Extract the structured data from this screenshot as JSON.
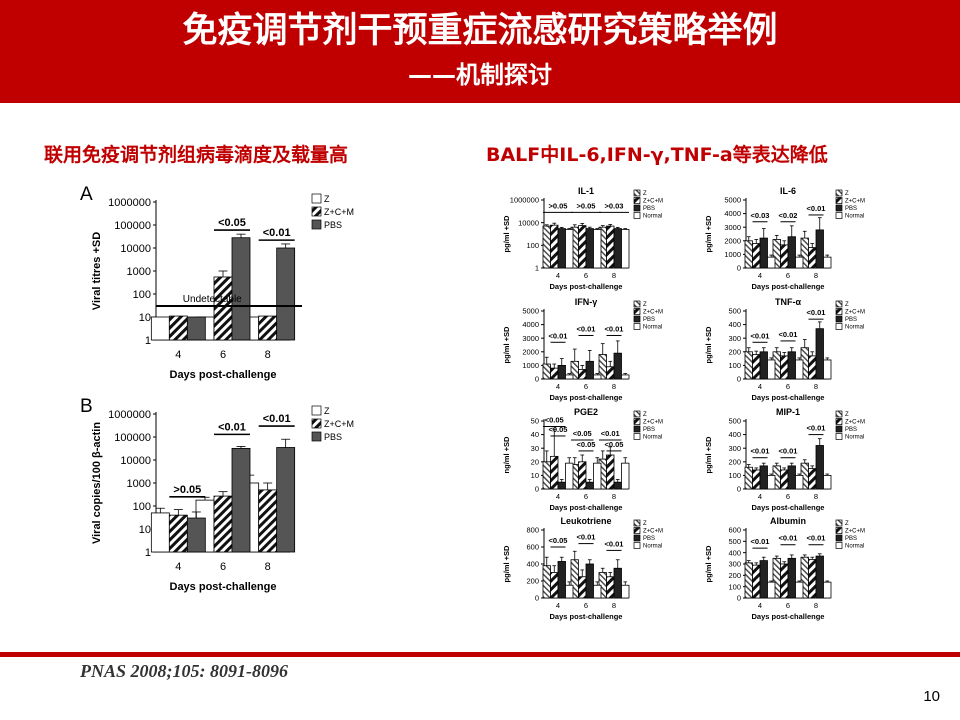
{
  "slide": {
    "title": "免疫调节剂干预重症流感研究策略举例",
    "subtitle": "——机制探讨",
    "left_heading": "联用免疫调节剂组病毒滴度及载量高",
    "right_heading": "BALF中IL-6,IFN-γ,TNF-a等表达降低",
    "citation": "PNAS 2008;105: 8091-8096",
    "page_number": "10"
  },
  "colors": {
    "header": "#c00000",
    "accent_text": "#c00000",
    "dark_bar": "#555555",
    "black_bar": "#222222"
  },
  "chart_data": [
    {
      "id": "A",
      "type": "bar",
      "panel_label": "A",
      "categories": [
        "4",
        "6",
        "8"
      ],
      "xlabel": "Days post-challenge",
      "ylabel": "Viral titres +SD",
      "yscale": "log",
      "ylim": [
        1,
        1000000
      ],
      "ticks": [
        "1",
        "10",
        "100",
        "1000",
        "10000",
        "100000",
        "1000000"
      ],
      "series": [
        {
          "name": "Z",
          "pattern": "white",
          "values": [
            10,
            10,
            10
          ]
        },
        {
          "name": "Z+C+M",
          "pattern": "stripe",
          "values": [
            11,
            550,
            11
          ]
        },
        {
          "name": "PBS",
          "pattern": "gray",
          "values": [
            10,
            28000,
            10000
          ]
        }
      ],
      "errors": [
        [
          0,
          0,
          0
        ],
        [
          0,
          450,
          0
        ],
        [
          0,
          12000,
          5000
        ]
      ],
      "reference_line": {
        "value": 30,
        "label": "Undetectable"
      },
      "annotations": [
        {
          "label": "<0.05",
          "cat": 1,
          "from": 1,
          "to": 2,
          "value": 60000
        },
        {
          "label": "<0.01",
          "cat": 2,
          "from": 1,
          "to": 2,
          "value": 22000
        }
      ]
    },
    {
      "id": "B",
      "type": "bar",
      "panel_label": "B",
      "categories": [
        "4",
        "6",
        "8"
      ],
      "xlabel": "Days post-challenge",
      "ylabel": "Viral copies/100 β-actin",
      "yscale": "log",
      "ylim": [
        1,
        1000000
      ],
      "ticks": [
        "1",
        "10",
        "100",
        "1000",
        "10000",
        "100000",
        "1000000"
      ],
      "series": [
        {
          "name": "Z",
          "pattern": "white",
          "values": [
            50,
            180,
            1000
          ]
        },
        {
          "name": "Z+C+M",
          "pattern": "stripe",
          "values": [
            40,
            270,
            500
          ]
        },
        {
          "name": "PBS",
          "pattern": "gray",
          "values": [
            30,
            32000,
            35000
          ]
        }
      ],
      "errors": [
        [
          30,
          60,
          1200
        ],
        [
          30,
          150,
          500
        ],
        [
          25,
          7000,
          45000
        ]
      ],
      "annotations": [
        {
          "label": ">0.05",
          "cat": 0,
          "from": 1,
          "to": 2,
          "value": 250
        },
        {
          "label": "<0.01",
          "cat": 1,
          "from": 1,
          "to": 2,
          "value": 130000
        },
        {
          "label": "<0.01",
          "cat": 2,
          "from": 1,
          "to": 2,
          "value": 300000
        }
      ]
    },
    {
      "id": "IL-1",
      "type": "bar",
      "title": "IL-1",
      "categories": [
        "4",
        "6",
        "8"
      ],
      "xlabel": "Days post-challenge",
      "ylabel": "pg/ml +SD",
      "yscale": "log",
      "ylim": [
        1,
        1000000
      ],
      "ticks": [
        "1",
        "100",
        "10000",
        "1000000"
      ],
      "series": [
        {
          "name": "Z",
          "pattern": "stripe2",
          "values": [
            5000,
            4000,
            4000
          ]
        },
        {
          "name": "Z+C+M",
          "pattern": "stripe",
          "values": [
            6000,
            5500,
            5000
          ]
        },
        {
          "name": "PBS",
          "pattern": "black",
          "values": [
            3000,
            3000,
            3000
          ]
        },
        {
          "name": "Normal",
          "pattern": "white",
          "values": [
            2500,
            2500,
            2500
          ]
        }
      ],
      "errors": [
        [
          1500,
          2500,
          1500
        ],
        [
          3000,
          3000,
          2000
        ],
        [
          800,
          1000,
          800
        ],
        [
          500,
          500,
          500
        ]
      ],
      "annotations": [
        {
          "label": ">0.05",
          "cat": 0,
          "from": 0,
          "to": 3,
          "value": 80000
        },
        {
          "label": ">0.05",
          "cat": 1,
          "from": 0,
          "to": 3,
          "value": 80000
        },
        {
          "label": ">0.03",
          "cat": 2,
          "from": 0,
          "to": 3,
          "value": 80000
        }
      ]
    },
    {
      "id": "IL-6",
      "type": "bar",
      "title": "IL-6",
      "categories": [
        "4",
        "6",
        "8"
      ],
      "xlabel": "Days post-challenge",
      "ylabel": "pg/ml +SD",
      "yscale": "linear",
      "ylim": [
        0,
        5000
      ],
      "ticks": [
        "0",
        "1000",
        "2000",
        "3000",
        "4000",
        "5000"
      ],
      "series": [
        {
          "name": "Z",
          "pattern": "stripe2",
          "values": [
            2000,
            2100,
            2200
          ]
        },
        {
          "name": "Z+C+M",
          "pattern": "stripe",
          "values": [
            1800,
            1700,
            1500
          ]
        },
        {
          "name": "PBS",
          "pattern": "black",
          "values": [
            2200,
            2300,
            2800
          ]
        },
        {
          "name": "Normal",
          "pattern": "white",
          "values": [
            800,
            800,
            800
          ]
        }
      ],
      "errors": [
        [
          300,
          300,
          500
        ],
        [
          300,
          300,
          300
        ],
        [
          700,
          800,
          900
        ],
        [
          150,
          150,
          150
        ]
      ],
      "annotations": [
        {
          "label": "<0.03",
          "cat": 0,
          "from": 1,
          "to": 2,
          "value": 3400
        },
        {
          "label": "<0.02",
          "cat": 1,
          "from": 1,
          "to": 2,
          "value": 3400
        },
        {
          "label": "<0.01",
          "cat": 2,
          "from": 1,
          "to": 2,
          "value": 3900
        }
      ]
    },
    {
      "id": "IFN",
      "type": "bar",
      "title": "IFN-γ",
      "categories": [
        "4",
        "6",
        "8"
      ],
      "xlabel": "Days post-challenge",
      "ylabel": "pg/ml +SD",
      "yscale": "linear",
      "ylim": [
        0,
        5000
      ],
      "ticks": [
        "0",
        "1000",
        "2000",
        "3000",
        "4000",
        "5000"
      ],
      "series": [
        {
          "name": "Z",
          "pattern": "stripe2",
          "values": [
            1100,
            1300,
            1800
          ]
        },
        {
          "name": "Z+C+M",
          "pattern": "stripe",
          "values": [
            800,
            700,
            900
          ]
        },
        {
          "name": "PBS",
          "pattern": "black",
          "values": [
            1000,
            1300,
            1900
          ]
        },
        {
          "name": "Normal",
          "pattern": "white",
          "values": [
            300,
            300,
            300
          ]
        }
      ],
      "errors": [
        [
          500,
          900,
          800
        ],
        [
          300,
          300,
          400
        ],
        [
          500,
          800,
          900
        ],
        [
          100,
          100,
          100
        ]
      ],
      "annotations": [
        {
          "label": "<0.01",
          "cat": 0,
          "from": 1,
          "to": 2,
          "value": 2700
        },
        {
          "label": "<0.01",
          "cat": 1,
          "from": 1,
          "to": 2,
          "value": 3200
        },
        {
          "label": "<0.01",
          "cat": 2,
          "from": 1,
          "to": 2,
          "value": 3200
        }
      ]
    },
    {
      "id": "TNF",
      "type": "bar",
      "title": "TNF-α",
      "categories": [
        "4",
        "6",
        "8"
      ],
      "xlabel": "Days post-challenge",
      "ylabel": "pg/ml +SD",
      "yscale": "linear",
      "ylim": [
        0,
        500
      ],
      "ticks": [
        "0",
        "100",
        "200",
        "300",
        "400",
        "500"
      ],
      "series": [
        {
          "name": "Z",
          "pattern": "stripe2",
          "values": [
            200,
            200,
            230
          ]
        },
        {
          "name": "Z+C+M",
          "pattern": "stripe",
          "values": [
            180,
            170,
            170
          ]
        },
        {
          "name": "PBS",
          "pattern": "black",
          "values": [
            200,
            200,
            370
          ]
        },
        {
          "name": "Normal",
          "pattern": "white",
          "values": [
            140,
            140,
            140
          ]
        }
      ],
      "errors": [
        [
          30,
          30,
          60
        ],
        [
          25,
          25,
          30
        ],
        [
          30,
          30,
          50
        ],
        [
          15,
          15,
          15
        ]
      ],
      "annotations": [
        {
          "label": "<0.01",
          "cat": 0,
          "from": 1,
          "to": 2,
          "value": 270
        },
        {
          "label": "<0.01",
          "cat": 1,
          "from": 1,
          "to": 2,
          "value": 280
        },
        {
          "label": "<0.01",
          "cat": 2,
          "from": 1,
          "to": 2,
          "value": 440
        }
      ]
    },
    {
      "id": "PGE2",
      "type": "bar",
      "title": "PGE2",
      "categories": [
        "4",
        "6",
        "8"
      ],
      "xlabel": "Days post-challenge",
      "ylabel": "ng/ml +SD",
      "yscale": "linear",
      "ylim": [
        0,
        50
      ],
      "ticks": [
        "0",
        "10",
        "20",
        "30",
        "40",
        "50"
      ],
      "series": [
        {
          "name": "Z",
          "pattern": "stripe2",
          "values": [
            20,
            18,
            22
          ]
        },
        {
          "name": "Z+C+M",
          "pattern": "stripe",
          "values": [
            24,
            20,
            25
          ]
        },
        {
          "name": "PBS",
          "pattern": "black",
          "values": [
            5,
            5,
            5
          ]
        },
        {
          "name": "Normal",
          "pattern": "white",
          "values": [
            19,
            19,
            19
          ]
        }
      ],
      "errors": [
        [
          8,
          5,
          6
        ],
        [
          20,
          5,
          6
        ],
        [
          2,
          2,
          2
        ],
        [
          4,
          4,
          4
        ]
      ],
      "annotations": [
        {
          "label": "<0.05",
          "cat": 0,
          "from": 0,
          "to": 2,
          "value": 46
        },
        {
          "label": "<0.05",
          "cat": 0,
          "from": 1,
          "to": 2,
          "value": 39
        },
        {
          "label": "<0.05",
          "cat": 1,
          "from": 0,
          "to": 2,
          "value": 36
        },
        {
          "label": "<0.05",
          "cat": 1,
          "from": 1,
          "to": 2,
          "value": 28
        },
        {
          "label": "<0.01",
          "cat": 2,
          "from": 0,
          "to": 2,
          "value": 36
        },
        {
          "label": "<0.05",
          "cat": 2,
          "from": 1,
          "to": 2,
          "value": 28
        }
      ]
    },
    {
      "id": "MIP-1",
      "type": "bar",
      "title": "MIP-1",
      "categories": [
        "4",
        "6",
        "8"
      ],
      "xlabel": "Days post-challenge",
      "ylabel": "pg/ml +SD",
      "yscale": "linear",
      "ylim": [
        0,
        500
      ],
      "ticks": [
        "0",
        "100",
        "200",
        "300",
        "400",
        "500"
      ],
      "series": [
        {
          "name": "Z",
          "pattern": "stripe2",
          "values": [
            160,
            170,
            190
          ]
        },
        {
          "name": "Z+C+M",
          "pattern": "stripe",
          "values": [
            140,
            140,
            150
          ]
        },
        {
          "name": "PBS",
          "pattern": "black",
          "values": [
            170,
            170,
            320
          ]
        },
        {
          "name": "Normal",
          "pattern": "white",
          "values": [
            100,
            100,
            100
          ]
        }
      ],
      "errors": [
        [
          20,
          20,
          25
        ],
        [
          15,
          15,
          20
        ],
        [
          20,
          20,
          50
        ],
        [
          10,
          10,
          10
        ]
      ],
      "annotations": [
        {
          "label": "<0.01",
          "cat": 0,
          "from": 1,
          "to": 2,
          "value": 230
        },
        {
          "label": "<0.01",
          "cat": 1,
          "from": 1,
          "to": 2,
          "value": 230
        },
        {
          "label": "<0.01",
          "cat": 2,
          "from": 1,
          "to": 2,
          "value": 400
        }
      ]
    },
    {
      "id": "Leukotriene",
      "type": "bar",
      "title": "Leukotriene",
      "categories": [
        "4",
        "6",
        "8"
      ],
      "xlabel": "Days post-challenge",
      "ylabel": "pg/ml +SD",
      "yscale": "linear",
      "ylim": [
        0,
        800
      ],
      "ticks": [
        "0",
        "200",
        "400",
        "600",
        "800"
      ],
      "series": [
        {
          "name": "Z",
          "pattern": "stripe2",
          "values": [
            380,
            450,
            300
          ]
        },
        {
          "name": "Z+C+M",
          "pattern": "stripe",
          "values": [
            300,
            250,
            250
          ]
        },
        {
          "name": "PBS",
          "pattern": "black",
          "values": [
            430,
            400,
            350
          ]
        },
        {
          "name": "Normal",
          "pattern": "white",
          "values": [
            150,
            150,
            150
          ]
        }
      ],
      "errors": [
        [
          100,
          100,
          50
        ],
        [
          80,
          80,
          50
        ],
        [
          50,
          50,
          100
        ],
        [
          40,
          40,
          40
        ]
      ],
      "annotations": [
        {
          "label": "<0.05",
          "cat": 0,
          "from": 1,
          "to": 2,
          "value": 600
        },
        {
          "label": "<0.01",
          "cat": 1,
          "from": 1,
          "to": 2,
          "value": 640
        },
        {
          "label": "<0.01",
          "cat": 2,
          "from": 1,
          "to": 2,
          "value": 560
        }
      ]
    },
    {
      "id": "Albumin",
      "type": "bar",
      "title": "Albumin",
      "categories": [
        "4",
        "6",
        "8"
      ],
      "xlabel": "Days post-challenge",
      "ylabel": "pg/ml +SD",
      "yscale": "linear",
      "ylim": [
        0,
        600
      ],
      "ticks": [
        "0",
        "100",
        "200",
        "300",
        "400",
        "500",
        "600"
      ],
      "series": [
        {
          "name": "Z",
          "pattern": "stripe2",
          "values": [
            310,
            350,
            360
          ]
        },
        {
          "name": "Z+C+M",
          "pattern": "stripe",
          "values": [
            290,
            300,
            340
          ]
        },
        {
          "name": "PBS",
          "pattern": "black",
          "values": [
            330,
            350,
            370
          ]
        },
        {
          "name": "Normal",
          "pattern": "white",
          "values": [
            140,
            140,
            140
          ]
        }
      ],
      "errors": [
        [
          20,
          20,
          20
        ],
        [
          20,
          20,
          20
        ],
        [
          30,
          30,
          20
        ],
        [
          10,
          10,
          10
        ]
      ],
      "annotations": [
        {
          "label": "<0.01",
          "cat": 0,
          "from": 1,
          "to": 2,
          "value": 440
        },
        {
          "label": "<0.01",
          "cat": 1,
          "from": 1,
          "to": 2,
          "value": 470
        },
        {
          "label": "<0.01",
          "cat": 2,
          "from": 1,
          "to": 2,
          "value": 470
        }
      ]
    }
  ]
}
